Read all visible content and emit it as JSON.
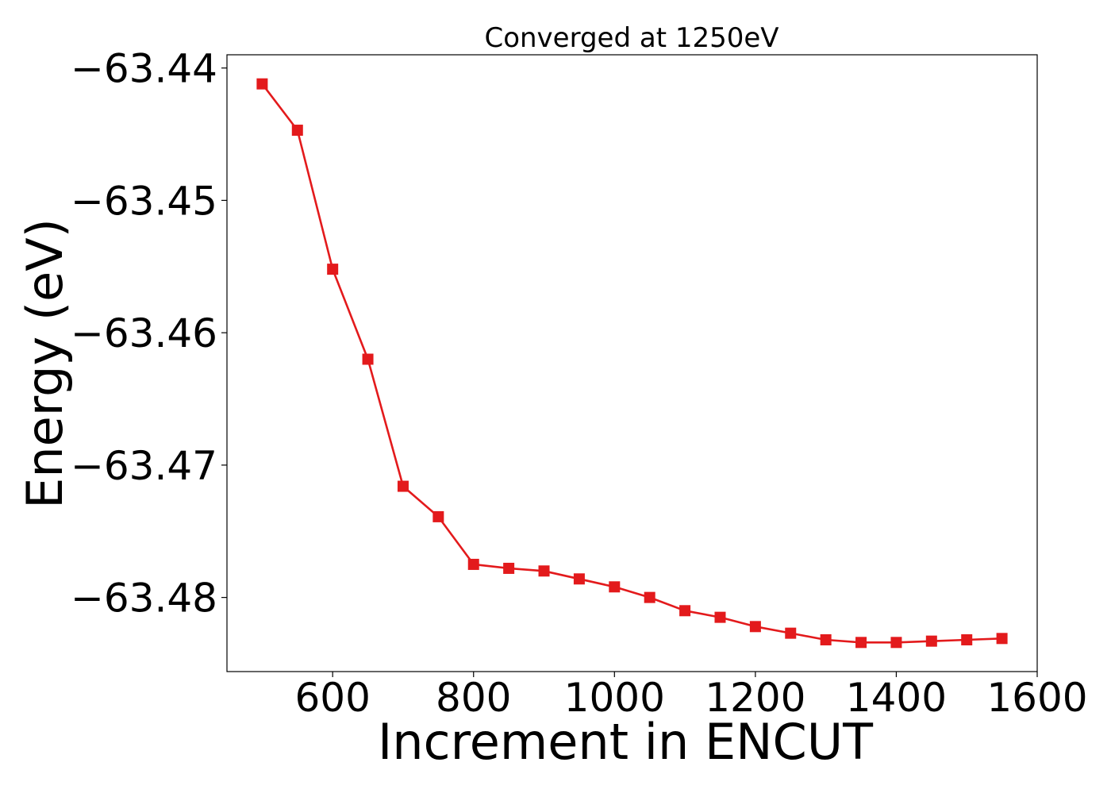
{
  "chart_data": {
    "type": "line",
    "title": "Converged at 1250eV",
    "xlabel": "Increment in ENCUT",
    "ylabel": "Energy (eV)",
    "xlim": [
      450,
      1600
    ],
    "ylim": [
      -63.4856,
      -63.439
    ],
    "xticks": [
      600,
      800,
      1000,
      1200,
      1400,
      1600
    ],
    "xtick_labels": [
      "600",
      "800",
      "1000",
      "1200",
      "1400",
      "1600"
    ],
    "yticks": [
      -63.44,
      -63.45,
      -63.46,
      -63.47,
      -63.48
    ],
    "ytick_labels": [
      "−63.44",
      "−63.45",
      "−63.46",
      "−63.47",
      "−63.48"
    ],
    "grid": false,
    "series": [
      {
        "color": "#e31a1c",
        "marker": "square",
        "x": [
          500,
          550,
          600,
          650,
          700,
          750,
          800,
          850,
          900,
          950,
          1000,
          1050,
          1100,
          1150,
          1200,
          1250,
          1300,
          1350,
          1400,
          1450,
          1500,
          1550
        ],
        "y": [
          -63.4412,
          -63.4447,
          -63.4552,
          -63.462,
          -63.4716,
          -63.4739,
          -63.4775,
          -63.4778,
          -63.478,
          -63.4786,
          -63.4792,
          -63.48,
          -63.481,
          -63.4815,
          -63.4822,
          -63.4827,
          -63.4832,
          -63.4834,
          -63.4834,
          -63.4833,
          -63.4832,
          -63.4831
        ]
      }
    ]
  }
}
